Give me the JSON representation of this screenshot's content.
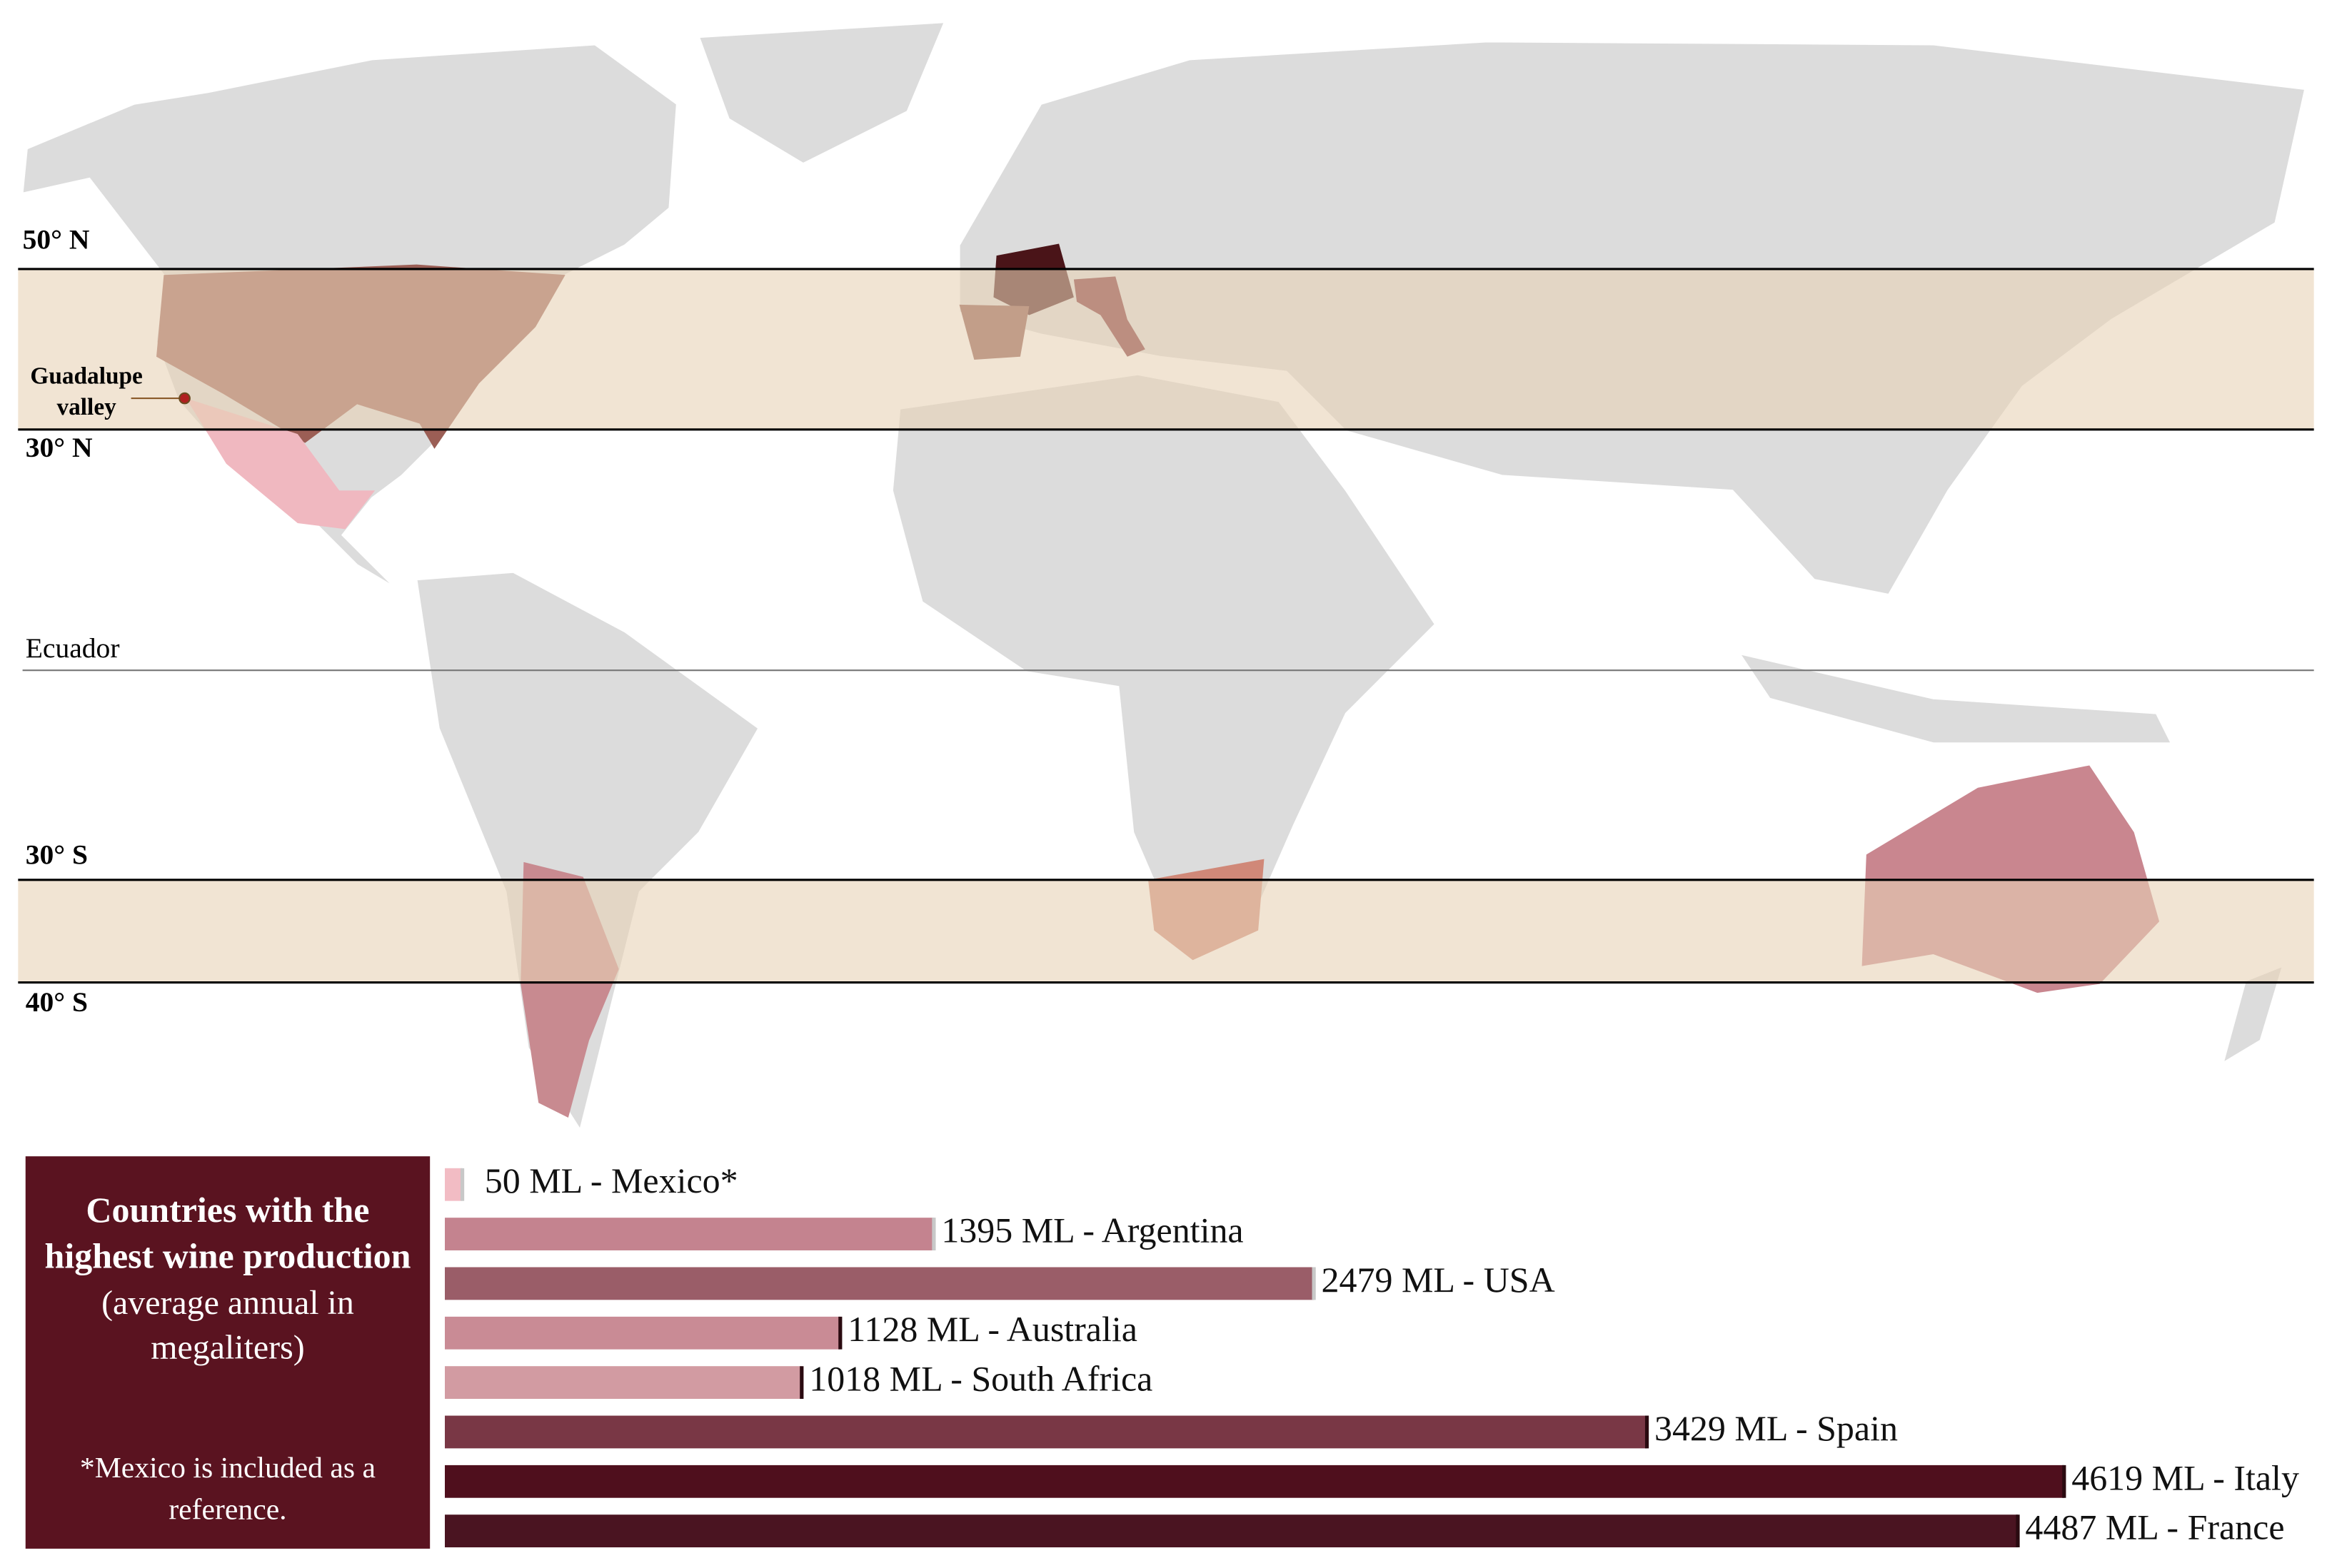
{
  "title_box": {
    "title": "Countries with the highest wine production",
    "subtitle": "(average annual in megaliters)",
    "note": "*Mexico is included as a reference."
  },
  "map": {
    "lat_50n": "50° N",
    "lat_30n": "30° N",
    "equator": "Ecuador",
    "lat_30s": "30° S",
    "lat_40s": "40° S",
    "annotation": "Guadalupe valley"
  },
  "chart_data": {
    "type": "bar",
    "orientation": "horizontal",
    "values": [
      50,
      1395,
      2479,
      1128,
      1018,
      3429,
      4619,
      4487
    ],
    "value_labels": [
      "50 ML - Mexico*",
      "1395 ML - Argentina",
      "2479 ML - USA",
      "1128 ML - Australia",
      "1018 ML - South Africa",
      "3429 ML - Spain",
      "4619 ML - Italy",
      "4487 ML - France"
    ],
    "colors": [
      "#f2bcc4",
      "#c4838f",
      "#9a5d68",
      "#c98b95",
      "#d29ba2",
      "#793745",
      "#4f0f1d",
      "#4a1421"
    ]
  }
}
